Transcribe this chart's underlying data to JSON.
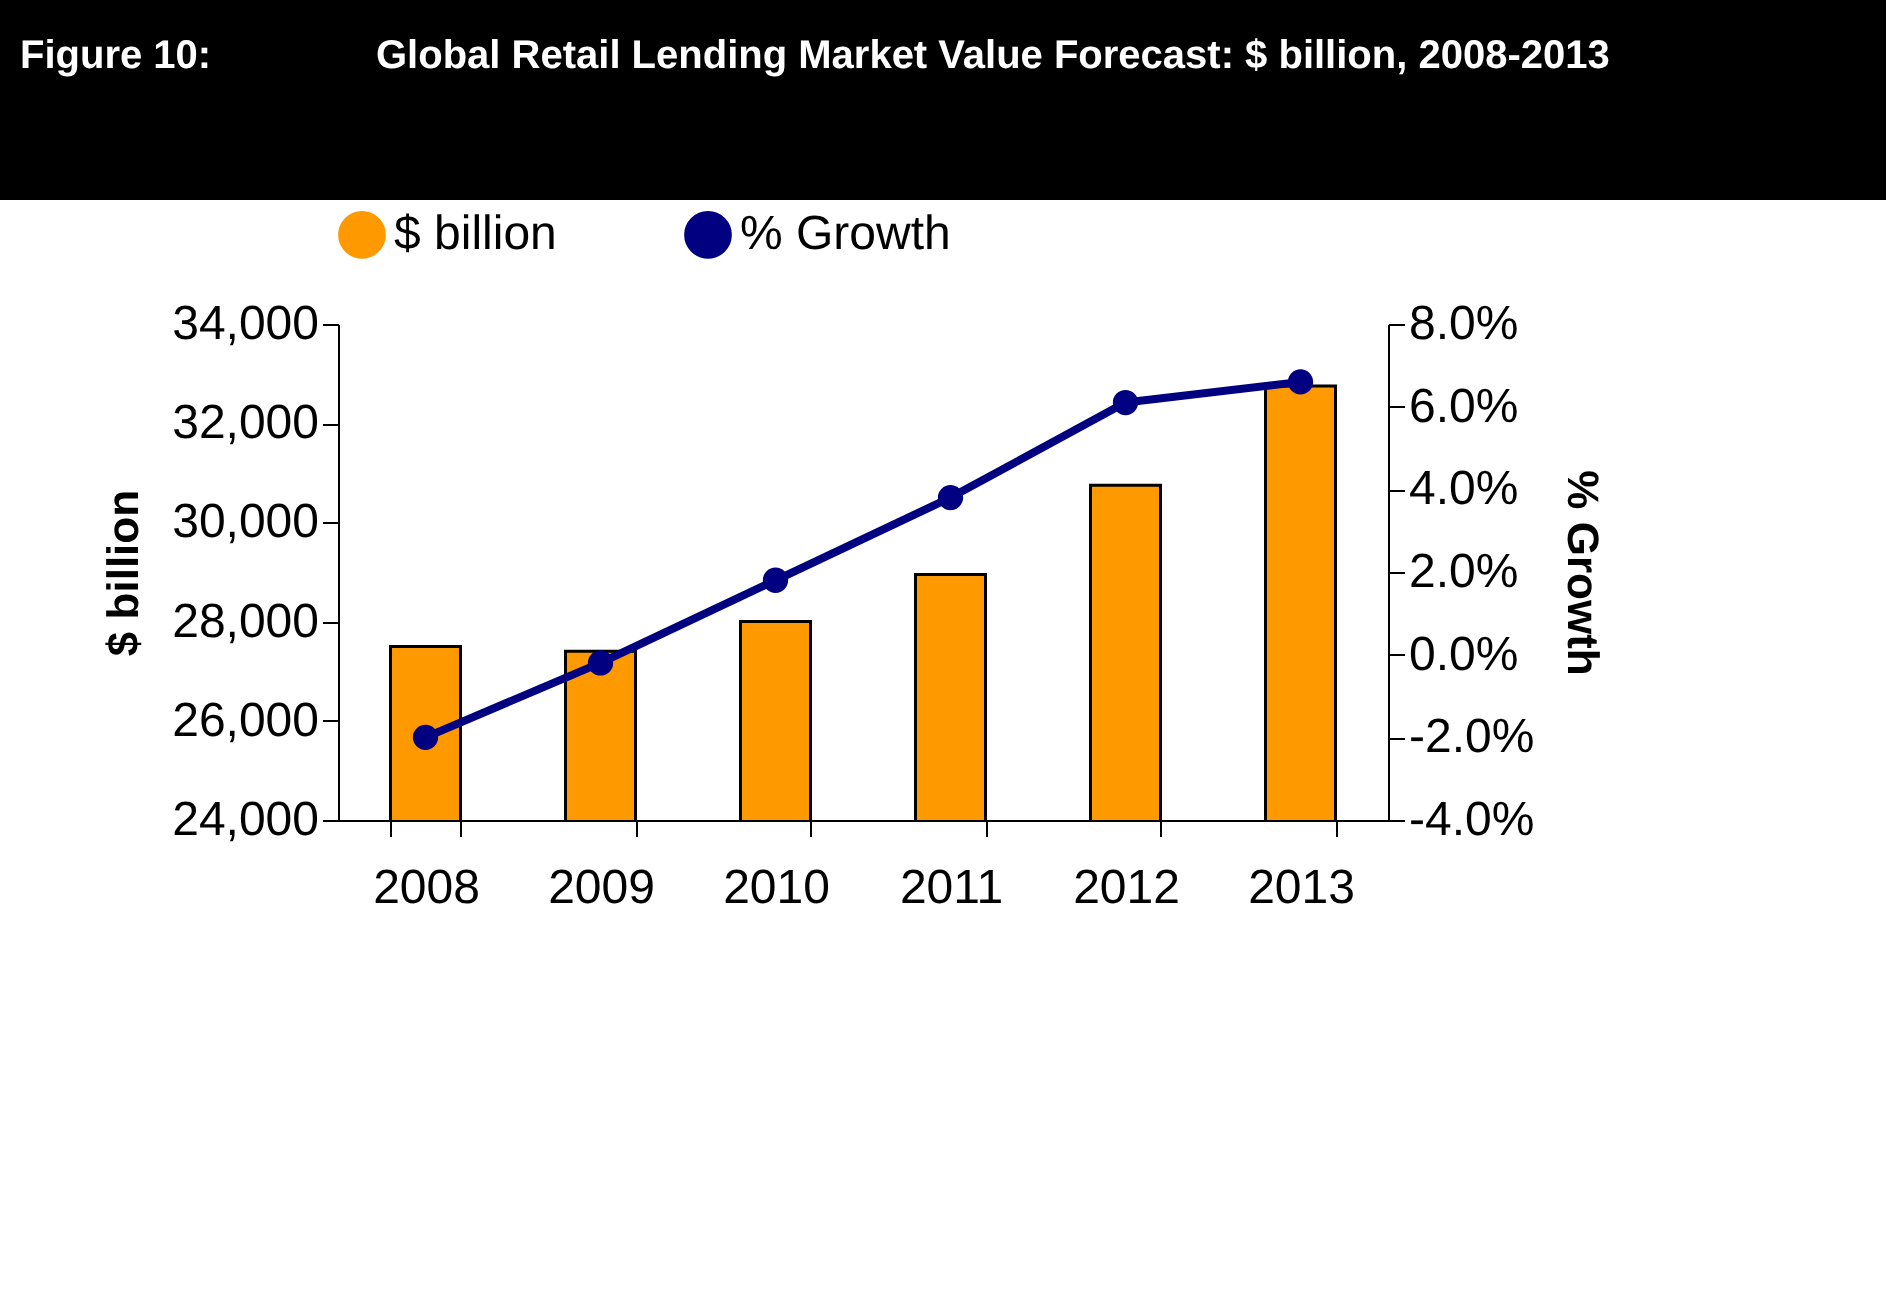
{
  "chart_data": {
    "type": "bar",
    "title": "Global Retail Lending Market Value Forecast: $ billion, 2008-2013",
    "annotations": [
      "Figure 10:"
    ],
    "categories": [
      "2008",
      "2009",
      "2010",
      "2011",
      "2012",
      "2013"
    ],
    "series": [
      {
        "name": "$ billion",
        "color": "#ff9900",
        "values": [
          27500,
          27400,
          28000,
          28950,
          30750,
          32750
        ]
      },
      {
        "name": "% Growth",
        "type": "line",
        "axis": "y2",
        "color": "#000080",
        "values": [
          -2.0,
          -0.2,
          1.8,
          3.8,
          6.1,
          6.6
        ]
      }
    ],
    "ylabel": "$ billion",
    "y2label": "% Growth",
    "ylim": [
      24000,
      34000
    ],
    "yticks": [
      {
        "value": 24000,
        "label": "24,000"
      },
      {
        "value": 26000,
        "label": "26,000"
      },
      {
        "value": 28000,
        "label": "28,000"
      },
      {
        "value": 30000,
        "label": "30,000"
      },
      {
        "value": 32000,
        "label": "32,000"
      },
      {
        "value": 34000,
        "label": "34,000"
      }
    ],
    "y2lim": [
      -4,
      8
    ],
    "y2ticks": [
      {
        "value": -4,
        "label": "-4.0%"
      },
      {
        "value": -2,
        "label": "-2.0%"
      },
      {
        "value": 0,
        "label": "0.0%"
      },
      {
        "value": 2,
        "label": "2.0%"
      },
      {
        "value": 4,
        "label": "4.0%"
      },
      {
        "value": 6,
        "label": "6.0%"
      },
      {
        "value": 8,
        "label": "8.0%"
      }
    ],
    "legend": "top",
    "grid": false,
    "marker": "circle",
    "line_style": "solid"
  }
}
